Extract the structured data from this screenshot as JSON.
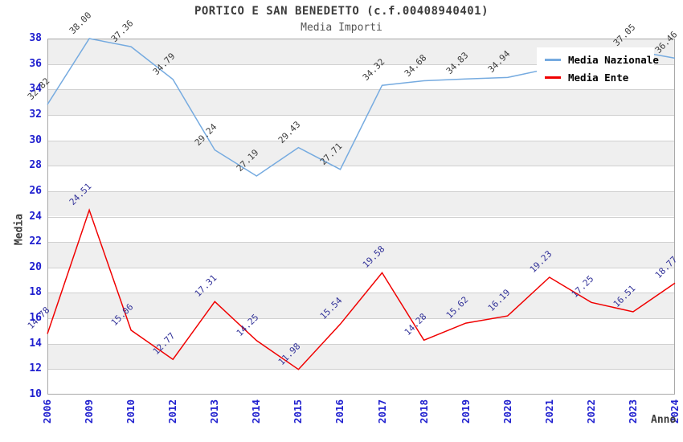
{
  "title": "PORTICO E SAN BENEDETTO (c.f.00408940401)",
  "subtitle": "Media Importi",
  "axes": {
    "y_title": "Media",
    "x_title": "Anno",
    "y_tick_labels": [
      "10",
      "12",
      "14",
      "16",
      "18",
      "20",
      "22",
      "24",
      "26",
      "28",
      "30",
      "32",
      "34",
      "36",
      "38"
    ],
    "x_tick_labels": [
      "2006",
      "2009",
      "2010",
      "2012",
      "2013",
      "2014",
      "2015",
      "2016",
      "2017",
      "2018",
      "2019",
      "2020",
      "2021",
      "2022",
      "2023",
      "2024"
    ]
  },
  "legend": {
    "items": [
      {
        "label": "Media Nazionale",
        "color": "#76abe0"
      },
      {
        "label": "Media Ente",
        "color": "#f00000"
      }
    ]
  },
  "colors": {
    "nazionale_line": "#76abe0",
    "ente_line": "#f00000",
    "nazionale_label_text": "#3d3d3d",
    "ente_label_text": "#333399",
    "tick_text": "#2020cf",
    "band_gray": "#efefef",
    "grid": "#d0d0d0",
    "frame": "#a8a8a8",
    "title_text": "#3c3c3c"
  },
  "chart_data": {
    "type": "line",
    "x": [
      "2006",
      "2009",
      "2010",
      "2012",
      "2013",
      "2014",
      "2015",
      "2016",
      "2017",
      "2018",
      "2019",
      "2020",
      "2021",
      "2022",
      "2023",
      "2024"
    ],
    "series": [
      {
        "name": "Media Nazionale",
        "values": [
          32.82,
          38.0,
          37.36,
          34.79,
          29.24,
          27.19,
          29.43,
          27.71,
          34.32,
          34.68,
          34.83,
          34.94,
          null,
          null,
          37.05,
          36.46
        ],
        "labels": [
          "32.82",
          "38.00",
          "37.36",
          "34.79",
          "29.24",
          "27.19",
          "29.43",
          "27.71",
          "34.32",
          "34.68",
          "34.83",
          "34.94",
          null,
          null,
          "37.05",
          "36.46"
        ],
        "note_hidden_points": "values for 2021 and 2022 are hidden behind the legend box in the screenshot"
      },
      {
        "name": "Media Ente",
        "values": [
          14.78,
          24.51,
          15.06,
          12.77,
          17.31,
          14.25,
          11.98,
          15.54,
          19.58,
          14.28,
          15.62,
          16.19,
          19.23,
          17.25,
          16.51,
          18.77
        ],
        "labels": [
          "14.78",
          "24.51",
          "15.06",
          "12.77",
          "17.31",
          "14.25",
          "11.98",
          "15.54",
          "19.58",
          "14.28",
          "15.62",
          "16.19",
          "19.23",
          "17.25",
          "16.51",
          "18.77"
        ]
      }
    ],
    "title": "PORTICO E SAN BENEDETTO (c.f.00408940401)",
    "subtitle": "Media Importi",
    "xlabel": "Anno",
    "ylabel": "Media",
    "ylim": [
      10,
      38
    ],
    "y_tick_step": 2,
    "grid": "horizontal",
    "background_bands": "alternating gray/white every 2 units, gray topmost (36-38)",
    "legend_position": "top-right-inside"
  }
}
